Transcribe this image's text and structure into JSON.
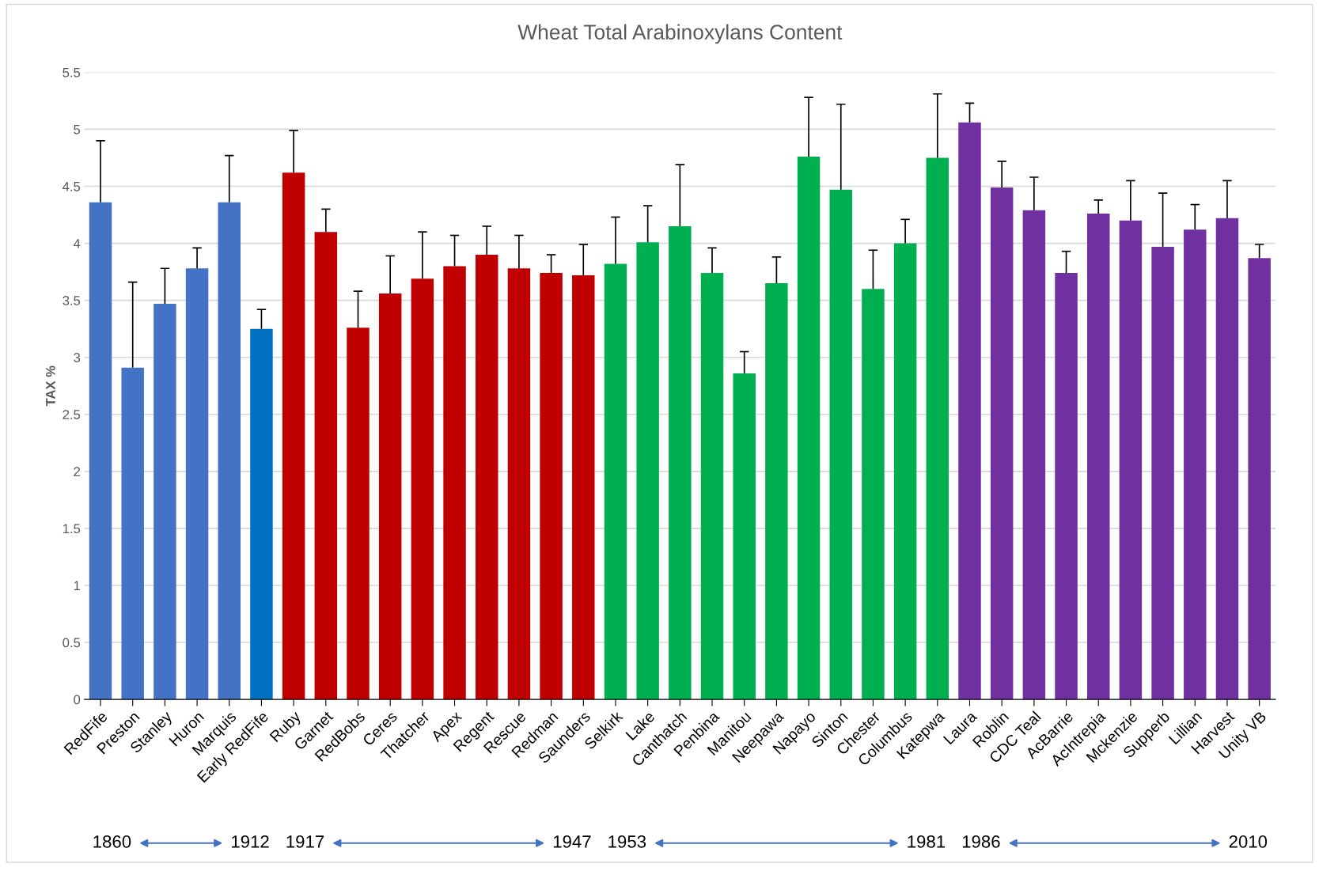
{
  "chart_data": {
    "type": "bar",
    "title": "Wheat Total Arabinoxylans Content",
    "ylabel": "TAX %",
    "categories": [
      "RedFife",
      "Preston",
      "Stanley",
      "Huron",
      "Marquis",
      "Early RedFife",
      "Ruby",
      "Garnet",
      "RedBobs",
      "Ceres",
      "Thatcher",
      "Apex",
      "Regent",
      "Rescue",
      "Redman",
      "Saunders",
      "Selkirk",
      "Lake",
      "Canthatch",
      "Penbina",
      "Manitou",
      "Neepawa",
      "Napayo",
      "Sinton",
      "Chester",
      "Columbus",
      "Katepwa",
      "Laura",
      "Roblin",
      "CDC Teal",
      "AcBarrie",
      "AcIntrepia",
      "Mckenzie",
      "Supperb",
      "Lillian",
      "Harvest",
      "Unity VB"
    ],
    "values": [
      4.36,
      2.91,
      3.47,
      3.78,
      4.36,
      3.25,
      4.62,
      4.1,
      3.26,
      3.56,
      3.69,
      3.8,
      3.9,
      3.78,
      3.74,
      3.72,
      3.82,
      4.01,
      4.15,
      3.74,
      2.86,
      3.65,
      4.76,
      4.47,
      3.6,
      4.0,
      4.75,
      5.06,
      4.49,
      4.29,
      3.74,
      4.26,
      4.2,
      3.97,
      4.12,
      4.22,
      3.87
    ],
    "errors": [
      [
        4.36,
        4.9
      ],
      [
        2.91,
        3.66
      ],
      [
        3.47,
        3.78
      ],
      [
        3.78,
        3.96
      ],
      [
        4.36,
        4.77
      ],
      [
        3.25,
        3.42
      ],
      [
        4.62,
        4.99
      ],
      [
        4.1,
        4.3
      ],
      [
        3.26,
        3.58
      ],
      [
        3.56,
        3.89
      ],
      [
        3.69,
        4.1
      ],
      [
        3.8,
        4.07
      ],
      [
        3.9,
        4.15
      ],
      [
        3.78,
        4.07
      ],
      [
        3.74,
        3.9
      ],
      [
        3.72,
        3.99
      ],
      [
        3.82,
        4.23
      ],
      [
        4.01,
        4.33
      ],
      [
        4.15,
        4.69
      ],
      [
        3.74,
        3.96
      ],
      [
        2.86,
        3.05
      ],
      [
        3.65,
        3.88
      ],
      [
        4.76,
        5.28
      ],
      [
        4.47,
        5.22
      ],
      [
        3.6,
        3.94
      ],
      [
        4.0,
        4.21
      ],
      [
        4.75,
        5.31
      ],
      [
        5.06,
        5.23
      ],
      [
        4.49,
        4.72
      ],
      [
        4.29,
        4.58
      ],
      [
        3.74,
        3.93
      ],
      [
        4.26,
        4.38
      ],
      [
        4.2,
        4.55
      ],
      [
        3.97,
        4.44
      ],
      [
        4.12,
        4.34
      ],
      [
        4.22,
        4.55
      ],
      [
        3.87,
        3.99
      ]
    ],
    "colors": [
      "#4472c4",
      "#4472c4",
      "#4472c4",
      "#4472c4",
      "#4472c4",
      "#0070c0",
      "#c00000",
      "#c00000",
      "#c00000",
      "#c00000",
      "#c00000",
      "#c00000",
      "#c00000",
      "#c00000",
      "#c00000",
      "#c00000",
      "#00b050",
      "#00b050",
      "#00b050",
      "#00b050",
      "#00b050",
      "#00b050",
      "#00b050",
      "#00b050",
      "#00b050",
      "#00b050",
      "#00b050",
      "#7030a0",
      "#7030a0",
      "#7030a0",
      "#7030a0",
      "#7030a0",
      "#7030a0",
      "#7030a0",
      "#7030a0",
      "#7030a0",
      "#7030a0"
    ],
    "ylim": [
      0,
      5.5
    ],
    "yticks": [
      0,
      0.5,
      1,
      1.5,
      2,
      2.5,
      3,
      3.5,
      4,
      4.5,
      5,
      5.5
    ],
    "grid": "y",
    "legend": false,
    "annotations": [
      "1860",
      "1912",
      "1917",
      "1947",
      "1953",
      "1981",
      "1986",
      "2010"
    ]
  }
}
